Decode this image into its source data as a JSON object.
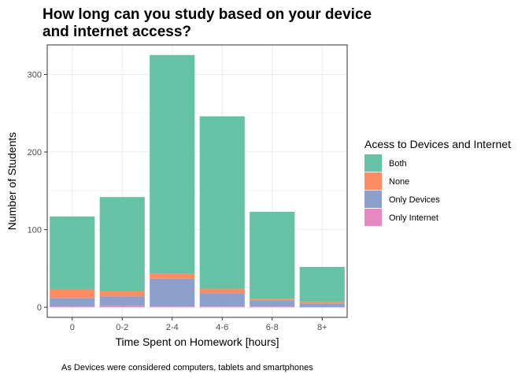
{
  "chart_data": {
    "type": "bar",
    "stacked": true,
    "title_lines": [
      "How long can you study based on your device",
      "and internet access?"
    ],
    "xlabel": "Time Spent on Homework [hours]",
    "ylabel": "Number of Students",
    "caption": "As Devices were considered computers, tablets and smartphones",
    "categories": [
      "0",
      "0-2",
      "2-4",
      "4-6",
      "6-8",
      "8+"
    ],
    "ylim": [
      -13,
      338
    ],
    "yticks": [
      0,
      100,
      200,
      300
    ],
    "grid": true,
    "legend": {
      "title": "Acess to Devices and Internet",
      "placement": "right"
    },
    "series": [
      {
        "name": "Only Internet",
        "color": "#E78AC3",
        "values": [
          1,
          2,
          1,
          1,
          1,
          0
        ]
      },
      {
        "name": "Only Devices",
        "color": "#8DA0CB",
        "values": [
          11,
          12,
          36,
          17,
          8,
          5
        ]
      },
      {
        "name": "None",
        "color": "#FC8D62",
        "values": [
          11,
          7,
          6,
          6,
          2,
          2
        ]
      },
      {
        "name": "Both",
        "color": "#66C2A5",
        "values": [
          94,
          121,
          282,
          222,
          112,
          45
        ]
      }
    ],
    "legend_order": [
      "Both",
      "None",
      "Only Devices",
      "Only Internet"
    ]
  }
}
